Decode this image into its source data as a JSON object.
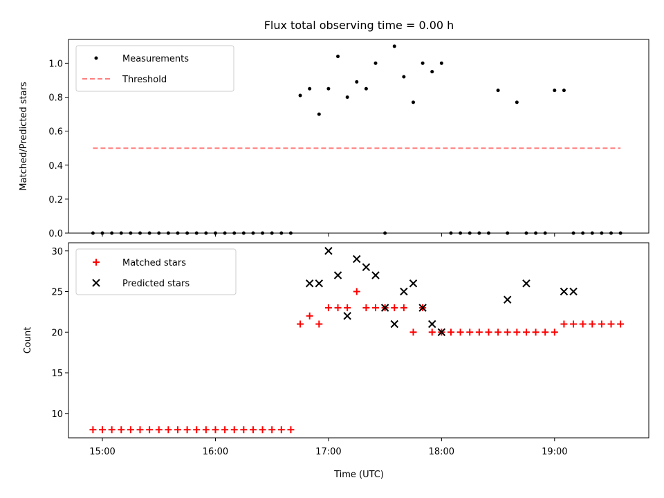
{
  "title": "Flux total observing time = 0.00 h",
  "colors": {
    "measurement": "#000000",
    "threshold": "#ff7f7f",
    "matched": "#ff0000",
    "predicted": "#000000"
  },
  "chart_data": [
    {
      "type": "scatter",
      "ylabel": "Matched/Predicted stars",
      "ylim": [
        0,
        1.14
      ],
      "yticks": [
        0.0,
        0.2,
        0.4,
        0.6,
        0.8,
        1.0
      ],
      "ytick_labels": [
        "0.0",
        "0.2",
        "0.4",
        "0.6",
        "0.8",
        "1.0"
      ],
      "legend_position": "upper-left",
      "series": [
        {
          "name": "Measurements",
          "marker": "dot",
          "x": [
            "14:55",
            "15:00",
            "15:05",
            "15:10",
            "15:15",
            "15:20",
            "15:25",
            "15:30",
            "15:35",
            "15:40",
            "15:45",
            "15:50",
            "15:55",
            "16:00",
            "16:05",
            "16:10",
            "16:15",
            "16:20",
            "16:25",
            "16:30",
            "16:35",
            "16:40",
            "16:45",
            "16:50",
            "16:55",
            "17:00",
            "17:05",
            "17:10",
            "17:15",
            "17:20",
            "17:25",
            "17:30",
            "17:35",
            "17:40",
            "17:45",
            "17:50",
            "17:55",
            "18:00",
            "18:05",
            "18:10",
            "18:15",
            "18:20",
            "18:25",
            "18:30",
            "18:35",
            "18:40",
            "18:45",
            "18:50",
            "18:55",
            "19:00",
            "19:05",
            "19:10",
            "19:15",
            "19:20",
            "19:25",
            "19:30",
            "19:35"
          ],
          "y": [
            0,
            0,
            0,
            0,
            0,
            0,
            0,
            0,
            0,
            0,
            0,
            0,
            0,
            0,
            0,
            0,
            0,
            0,
            0,
            0,
            0,
            0,
            0.81,
            0.85,
            0.7,
            0.85,
            1.04,
            0.8,
            0.89,
            0.85,
            1.0,
            0,
            1.1,
            0.92,
            0.77,
            1.0,
            0.95,
            1.0,
            0,
            0,
            0,
            0,
            0,
            0.84,
            0,
            0.77,
            0,
            0,
            0,
            0.84,
            0.84,
            0,
            0,
            0,
            0,
            0,
            0
          ]
        },
        {
          "name": "Threshold",
          "marker": "dashed-line",
          "x": [
            "14:55",
            "19:35"
          ],
          "y": [
            0.5,
            0.5
          ]
        }
      ]
    },
    {
      "type": "scatter",
      "xlabel": "Time (UTC)",
      "ylabel": "Count",
      "ylim": [
        7,
        31
      ],
      "yticks": [
        10,
        15,
        20,
        25,
        30
      ],
      "ytick_labels": [
        "10",
        "15",
        "20",
        "25",
        "30"
      ],
      "xlim": [
        "14:42",
        "19:50"
      ],
      "xticks": [
        "15:00",
        "16:00",
        "17:00",
        "18:00",
        "19:00"
      ],
      "legend_position": "upper-left",
      "series": [
        {
          "name": "Matched stars",
          "marker": "plus",
          "x": [
            "14:55",
            "15:00",
            "15:05",
            "15:10",
            "15:15",
            "15:20",
            "15:25",
            "15:30",
            "15:35",
            "15:40",
            "15:45",
            "15:50",
            "15:55",
            "16:00",
            "16:05",
            "16:10",
            "16:15",
            "16:20",
            "16:25",
            "16:30",
            "16:35",
            "16:40",
            "16:45",
            "16:50",
            "16:55",
            "17:00",
            "17:05",
            "17:10",
            "17:15",
            "17:20",
            "17:25",
            "17:30",
            "17:35",
            "17:40",
            "17:45",
            "17:50",
            "17:55",
            "18:00",
            "18:05",
            "18:10",
            "18:15",
            "18:20",
            "18:25",
            "18:30",
            "18:35",
            "18:40",
            "18:45",
            "18:50",
            "18:55",
            "19:00",
            "19:05",
            "19:10",
            "19:15",
            "19:20",
            "19:25",
            "19:30",
            "19:35"
          ],
          "y": [
            8,
            8,
            8,
            8,
            8,
            8,
            8,
            8,
            8,
            8,
            8,
            8,
            8,
            8,
            8,
            8,
            8,
            8,
            8,
            8,
            8,
            8,
            21,
            22,
            21,
            23,
            23,
            23,
            25,
            23,
            23,
            23,
            23,
            23,
            20,
            23,
            20,
            20,
            20,
            20,
            20,
            20,
            20,
            20,
            20,
            20,
            20,
            20,
            20,
            20,
            21,
            21,
            21,
            21,
            21,
            21,
            21
          ]
        },
        {
          "name": "Predicted stars",
          "marker": "x",
          "x": [
            "16:50",
            "16:55",
            "17:00",
            "17:05",
            "17:10",
            "17:15",
            "17:20",
            "17:25",
            "17:30",
            "17:35",
            "17:40",
            "17:45",
            "17:50",
            "17:55",
            "18:00",
            "18:35",
            "18:45",
            "19:05",
            "19:10"
          ],
          "y": [
            26,
            26,
            30,
            27,
            22,
            29,
            28,
            27,
            23,
            21,
            25,
            26,
            23,
            21,
            20,
            24,
            26,
            25,
            25
          ]
        }
      ]
    }
  ]
}
